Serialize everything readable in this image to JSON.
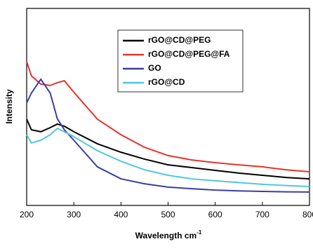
{
  "chart_data": {
    "type": "line",
    "x_label": "Wavelength cm",
    "x_label_sup": "-1",
    "y_label": "Intensity",
    "x": [
      200,
      210,
      230,
      250,
      265,
      280,
      300,
      350,
      400,
      450,
      500,
      550,
      600,
      650,
      700,
      750,
      800
    ],
    "xlim": [
      200,
      800
    ],
    "xticks": [
      200,
      300,
      400,
      500,
      600,
      700,
      800
    ],
    "ylim": [
      0,
      100
    ],
    "yticks": [],
    "legend": "upper-center",
    "series": [
      {
        "name": "rGO@CD@PEG",
        "color": "#000000",
        "values": [
          43.8,
          38.4,
          37.4,
          39.5,
          41.3,
          40.2,
          37.4,
          31.3,
          27,
          23.5,
          20.6,
          19.2,
          17.8,
          16.4,
          15.3,
          14.2,
          13.5
        ]
      },
      {
        "name": "rGO@CD@PEG@FA",
        "color": "#e8332a",
        "values": [
          73,
          65.8,
          61.6,
          60.9,
          62.3,
          63.3,
          57.5,
          43.8,
          35.9,
          29.5,
          25.3,
          23.1,
          21.7,
          20.6,
          19.6,
          18.1,
          17.1
        ]
      },
      {
        "name": "GO",
        "color": "#3a3fa0",
        "values": [
          52,
          57,
          64.1,
          57,
          44,
          38.4,
          33.1,
          19.6,
          13.5,
          11,
          9.3,
          8.5,
          7.8,
          7.4,
          7.1,
          6.9,
          6.8
        ]
      },
      {
        "name": "rGO@CD",
        "color": "#4fc8d8",
        "values": [
          35.9,
          31.7,
          33.1,
          35.9,
          39.1,
          37.4,
          34.9,
          27.8,
          22.4,
          18.1,
          15.3,
          13.5,
          12.5,
          11.6,
          10.7,
          10.1,
          9.6
        ]
      }
    ]
  }
}
